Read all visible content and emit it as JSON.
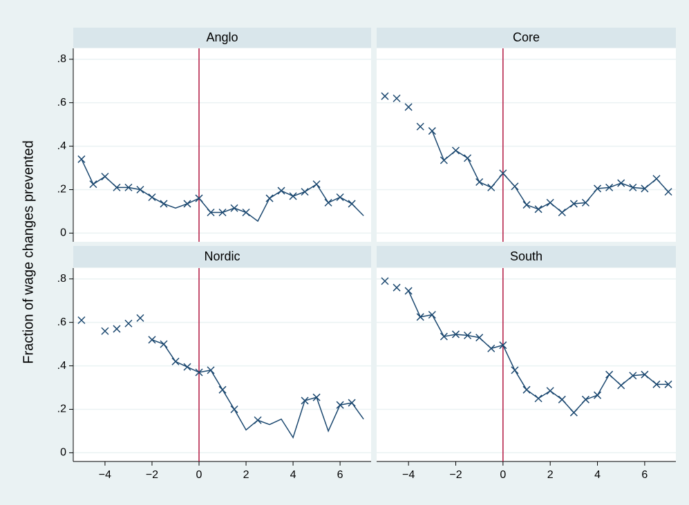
{
  "chart_data": {
    "type": "line",
    "ylabel": "Fraction of wage changes prevented",
    "color": "#1a476f",
    "vline": 0,
    "vline_color": "#b2153f",
    "grid": true,
    "xlim": [
      -5.35,
      7.32
    ],
    "ylim": [
      -0.04,
      0.85
    ],
    "xticks": [
      {
        "value": -4,
        "label": "−4"
      },
      {
        "value": -2,
        "label": "−2"
      },
      0,
      2,
      4,
      6
    ],
    "yticks": [
      0,
      {
        "value": 0.2,
        "label": ".2"
      },
      {
        "value": 0.4,
        "label": ".4"
      },
      {
        "value": 0.6,
        "label": ".6"
      },
      {
        "value": 0.8,
        "label": ".8"
      }
    ],
    "x": [
      -5,
      -4.5,
      -4,
      -3.5,
      -3,
      -2.5,
      -2,
      -1.5,
      -1,
      -0.5,
      0,
      0.5,
      1,
      1.5,
      2,
      2.5,
      3,
      3.5,
      4,
      4.5,
      5,
      5.5,
      6,
      6.5,
      7
    ],
    "panels": [
      {
        "title": "Anglo",
        "series": [
          {
            "style": "line",
            "values": [
              0.34,
              0.225,
              0.26,
              0.21,
              0.21,
              0.2,
              0.165,
              0.135,
              0.115,
              0.135,
              0.16,
              0.095,
              0.095,
              0.115,
              0.095,
              0.055,
              0.16,
              0.195,
              0.17,
              0.19,
              0.225,
              0.14,
              0.165,
              0.135,
              0.08
            ]
          },
          {
            "style": "x",
            "values": [
              0.34,
              0.225,
              0.26,
              0.21,
              0.21,
              0.2,
              0.165,
              0.135,
              null,
              0.135,
              0.16,
              0.095,
              0.095,
              0.115,
              0.095,
              null,
              0.16,
              0.195,
              0.17,
              0.19,
              0.225,
              0.14,
              0.165,
              0.135,
              null
            ]
          }
        ]
      },
      {
        "title": "Core",
        "series": [
          {
            "style": "line",
            "values": [
              null,
              null,
              null,
              null,
              0.47,
              0.335,
              0.38,
              0.345,
              0.235,
              0.21,
              0.275,
              0.215,
              0.13,
              0.11,
              0.14,
              0.095,
              0.135,
              0.14,
              0.205,
              0.21,
              0.23,
              0.21,
              0.205,
              0.25,
              0.19
            ]
          },
          {
            "style": "x",
            "values": [
              0.63,
              0.62,
              0.58,
              0.49,
              0.47,
              0.335,
              0.38,
              0.345,
              0.235,
              0.21,
              0.275,
              0.215,
              0.13,
              0.11,
              0.14,
              0.095,
              0.135,
              0.14,
              0.205,
              0.21,
              0.23,
              0.21,
              0.205,
              0.25,
              0.19
            ]
          }
        ]
      },
      {
        "title": "Nordic",
        "series": [
          {
            "style": "line",
            "values": [
              null,
              null,
              null,
              null,
              null,
              null,
              0.52,
              0.5,
              0.42,
              0.395,
              0.37,
              0.38,
              0.29,
              0.2,
              0.105,
              0.15,
              0.13,
              0.155,
              0.07,
              0.24,
              0.255,
              0.1,
              0.22,
              0.23,
              0.155
            ]
          },
          {
            "style": "x",
            "values": [
              0.61,
              null,
              0.56,
              0.57,
              0.595,
              0.62,
              0.52,
              0.5,
              0.42,
              0.395,
              0.37,
              0.38,
              0.29,
              0.2,
              null,
              0.15,
              null,
              null,
              null,
              0.24,
              0.255,
              null,
              0.22,
              0.23,
              null
            ]
          }
        ]
      },
      {
        "title": "South",
        "series": [
          {
            "style": "line",
            "values": [
              null,
              null,
              0.745,
              0.625,
              0.635,
              0.535,
              0.545,
              0.54,
              0.53,
              0.48,
              0.495,
              0.38,
              0.29,
              0.25,
              0.285,
              0.245,
              0.185,
              0.245,
              0.265,
              0.36,
              0.31,
              0.355,
              0.36,
              0.315,
              0.315
            ]
          },
          {
            "style": "x",
            "values": [
              0.79,
              0.76,
              0.745,
              0.625,
              0.635,
              0.535,
              0.545,
              0.54,
              0.53,
              0.48,
              0.495,
              0.38,
              0.29,
              0.25,
              0.285,
              0.245,
              0.185,
              0.245,
              0.265,
              0.36,
              0.31,
              0.355,
              0.36,
              0.315,
              0.315
            ]
          }
        ]
      }
    ]
  }
}
